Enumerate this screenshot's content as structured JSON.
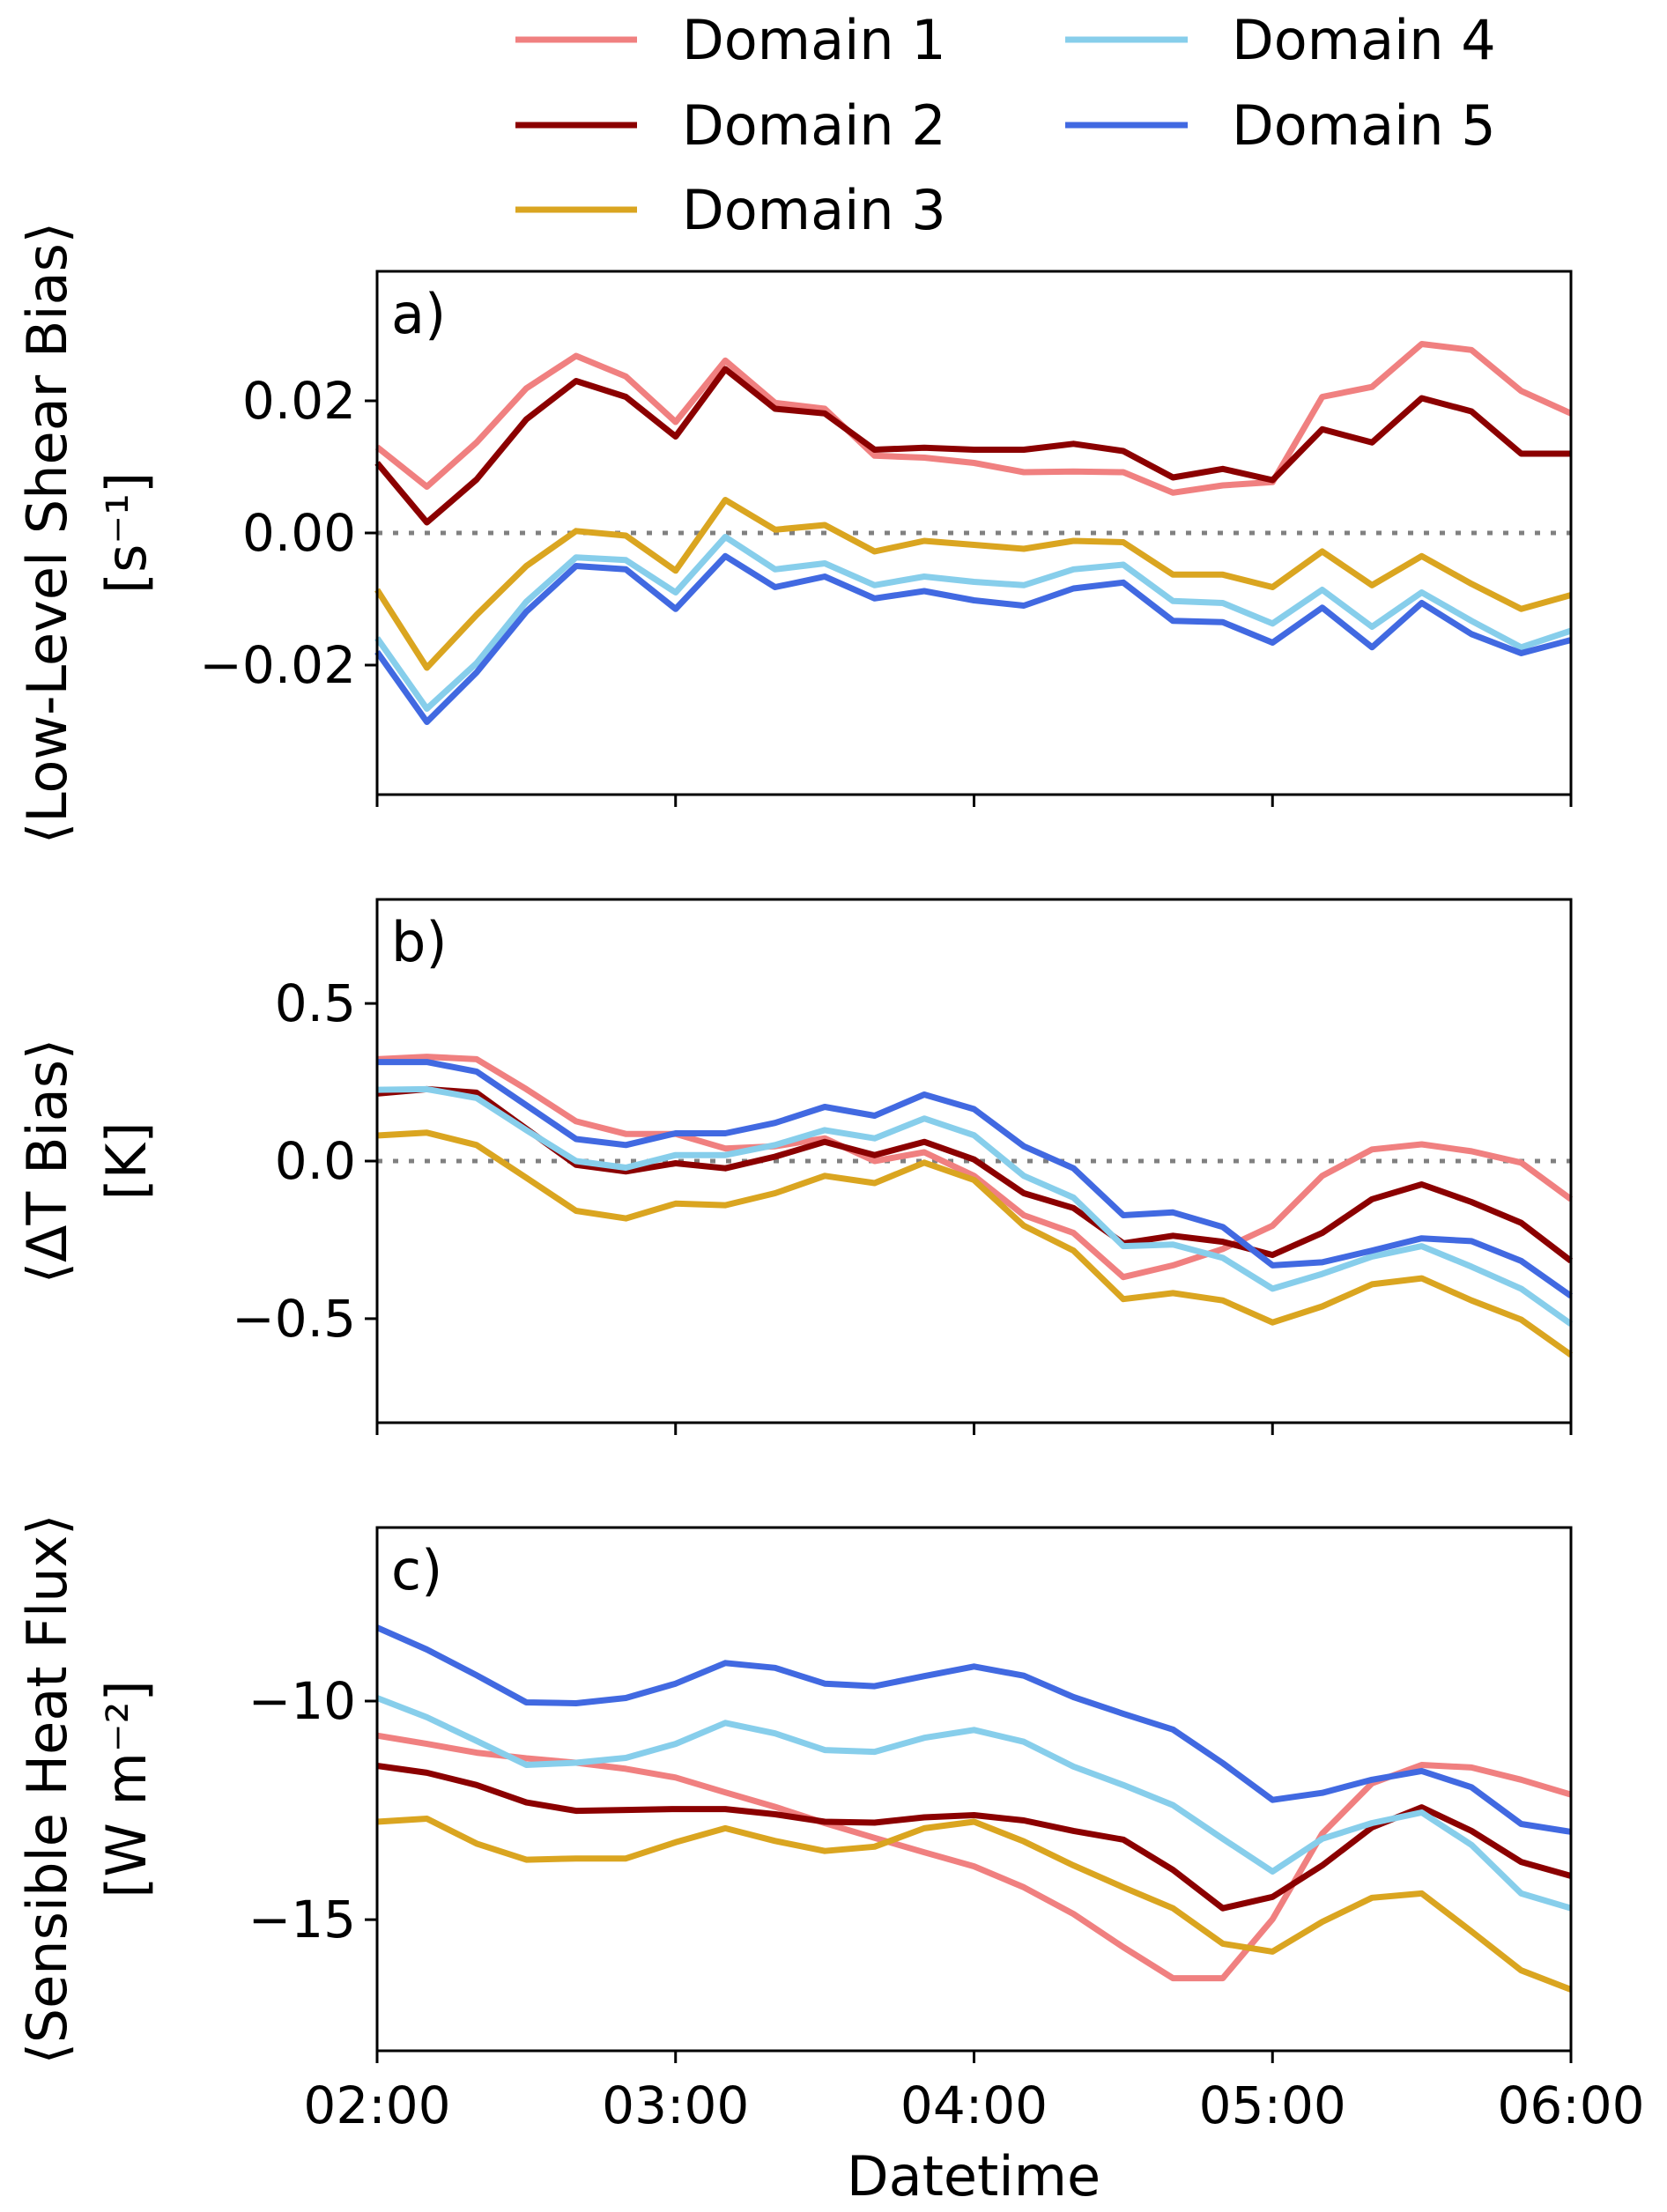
{
  "figure": {
    "xlabel": "Datetime"
  },
  "legend": {
    "placement": "top-center",
    "columns": 2,
    "entries": [
      {
        "label": "Domain 1",
        "color": "#F08080"
      },
      {
        "label": "Domain 2",
        "color": "#8B0000"
      },
      {
        "label": "Domain 3",
        "color": "#DAA520"
      },
      {
        "label": "Domain 4",
        "color": "#87CEEB"
      },
      {
        "label": "Domain 5",
        "color": "#4169E1"
      }
    ]
  },
  "chart_data": [
    {
      "type": "line",
      "panel_label": "a)",
      "title": "",
      "ylabel_line1": "⟨Low-Level Shear Bias⟩",
      "ylabel_line2": "[s⁻¹]",
      "xlabel": "",
      "x": [
        "02:00",
        "02:10",
        "02:20",
        "02:30",
        "02:40",
        "02:50",
        "03:00",
        "03:10",
        "03:20",
        "03:30",
        "03:40",
        "03:50",
        "04:00",
        "04:10",
        "04:20",
        "04:30",
        "04:40",
        "04:50",
        "05:00",
        "05:10",
        "05:20",
        "05:30",
        "05:40",
        "05:50",
        "06:00"
      ],
      "xticks": [
        "02:00",
        "03:00",
        "04:00",
        "05:00",
        "06:00"
      ],
      "show_xtick_labels": false,
      "ylim": [
        -0.0396,
        0.0396
      ],
      "yticks": [
        0.02,
        0.0,
        -0.02
      ],
      "ytick_labels": [
        "0.02",
        "0.00",
        "−0.02"
      ],
      "reference_line": 0,
      "grid": false,
      "series": [
        {
          "name": "Domain 1",
          "values": [
            0.013,
            0.007,
            0.0137,
            0.0219,
            0.0268,
            0.0237,
            0.0168,
            0.0261,
            0.0197,
            0.0188,
            0.0117,
            0.0114,
            0.0106,
            0.0092,
            0.0093,
            0.0092,
            0.0061,
            0.0072,
            0.0077,
            0.0206,
            0.0221,
            0.0286,
            0.0277,
            0.0215,
            0.0181
          ]
        },
        {
          "name": "Domain 2",
          "values": [
            0.0106,
            0.0016,
            0.0081,
            0.0172,
            0.023,
            0.0206,
            0.0146,
            0.0248,
            0.0188,
            0.0181,
            0.0126,
            0.0129,
            0.0126,
            0.0126,
            0.0135,
            0.0124,
            0.0084,
            0.0097,
            0.008,
            0.0157,
            0.0137,
            0.0204,
            0.0184,
            0.012,
            0.012
          ]
        },
        {
          "name": "Domain 3",
          "values": [
            -0.0086,
            -0.0204,
            -0.0124,
            -0.005,
            0.0003,
            -0.0004,
            -0.0057,
            0.005,
            0.0005,
            0.0012,
            -0.0028,
            -0.0012,
            -0.0018,
            -0.0024,
            -0.0012,
            -0.0014,
            -0.0063,
            -0.0063,
            -0.0082,
            -0.0028,
            -0.0079,
            -0.0035,
            -0.0077,
            -0.0115,
            -0.0094
          ]
        },
        {
          "name": "Domain 4",
          "values": [
            -0.0159,
            -0.0266,
            -0.0197,
            -0.0104,
            -0.0037,
            -0.0041,
            -0.009,
            -0.0006,
            -0.0055,
            -0.0046,
            -0.0079,
            -0.0066,
            -0.0074,
            -0.0079,
            -0.0055,
            -0.0048,
            -0.0103,
            -0.0106,
            -0.0137,
            -0.0086,
            -0.0142,
            -0.009,
            -0.0133,
            -0.0173,
            -0.0148
          ]
        },
        {
          "name": "Domain 5",
          "values": [
            -0.018,
            -0.0286,
            -0.0211,
            -0.0119,
            -0.005,
            -0.0055,
            -0.0115,
            -0.0035,
            -0.0082,
            -0.0066,
            -0.0099,
            -0.0088,
            -0.0102,
            -0.011,
            -0.0084,
            -0.0075,
            -0.0133,
            -0.0135,
            -0.0166,
            -0.0113,
            -0.0173,
            -0.0106,
            -0.0153,
            -0.0182,
            -0.0162
          ]
        }
      ]
    },
    {
      "type": "line",
      "panel_label": "b)",
      "title": "",
      "ylabel_line1": "⟨ΔT Bias⟩",
      "ylabel_line2": "[K]",
      "xlabel": "",
      "x": [
        "02:00",
        "02:10",
        "02:20",
        "02:30",
        "02:40",
        "02:50",
        "03:00",
        "03:10",
        "03:20",
        "03:30",
        "03:40",
        "03:50",
        "04:00",
        "04:10",
        "04:20",
        "04:30",
        "04:40",
        "04:50",
        "05:00",
        "05:10",
        "05:20",
        "05:30",
        "05:40",
        "05:50",
        "06:00"
      ],
      "xticks": [
        "02:00",
        "03:00",
        "04:00",
        "05:00",
        "06:00"
      ],
      "show_xtick_labels": false,
      "ylim": [
        -0.83,
        0.83
      ],
      "yticks": [
        0.5,
        0.0,
        -0.5
      ],
      "ytick_labels": [
        "0.5",
        "0.0",
        "−0.5"
      ],
      "reference_line": 0,
      "grid": false,
      "series": [
        {
          "name": "Domain 1",
          "values": [
            0.323,
            0.331,
            0.323,
            0.228,
            0.126,
            0.086,
            0.086,
            0.04,
            0.047,
            0.072,
            0.0,
            0.028,
            -0.047,
            -0.172,
            -0.228,
            -0.368,
            -0.331,
            -0.279,
            -0.205,
            -0.047,
            0.037,
            0.053,
            0.031,
            -0.005,
            -0.121
          ]
        },
        {
          "name": "Domain 2",
          "values": [
            0.214,
            0.228,
            0.217,
            0.102,
            -0.012,
            -0.033,
            -0.007,
            -0.023,
            0.014,
            0.061,
            0.019,
            0.061,
            0.005,
            -0.102,
            -0.149,
            -0.261,
            -0.237,
            -0.256,
            -0.298,
            -0.228,
            -0.121,
            -0.074,
            -0.13,
            -0.196,
            -0.317
          ]
        },
        {
          "name": "Domain 3",
          "values": [
            0.081,
            0.09,
            0.051,
            -0.053,
            -0.158,
            -0.182,
            -0.135,
            -0.14,
            -0.102,
            -0.047,
            -0.07,
            -0.005,
            -0.06,
            -0.205,
            -0.284,
            -0.438,
            -0.419,
            -0.442,
            -0.512,
            -0.461,
            -0.391,
            -0.372,
            -0.442,
            -0.503,
            -0.615
          ]
        },
        {
          "name": "Domain 4",
          "values": [
            0.226,
            0.228,
            0.2,
            0.098,
            0.0,
            -0.021,
            0.019,
            0.019,
            0.051,
            0.098,
            0.072,
            0.135,
            0.082,
            -0.047,
            -0.116,
            -0.27,
            -0.265,
            -0.307,
            -0.405,
            -0.358,
            -0.303,
            -0.27,
            -0.335,
            -0.405,
            -0.517
          ]
        },
        {
          "name": "Domain 5",
          "values": [
            0.314,
            0.314,
            0.284,
            0.177,
            0.07,
            0.051,
            0.088,
            0.088,
            0.121,
            0.172,
            0.144,
            0.211,
            0.165,
            0.047,
            -0.023,
            -0.172,
            -0.163,
            -0.209,
            -0.331,
            -0.321,
            -0.284,
            -0.245,
            -0.254,
            -0.317,
            -0.428
          ]
        }
      ]
    },
    {
      "type": "line",
      "panel_label": "c)",
      "title": "",
      "ylabel_line1": "⟨Sensible Heat Flux⟩",
      "ylabel_line2": "[W m⁻²]",
      "xlabel": "Datetime",
      "x": [
        "02:00",
        "02:10",
        "02:20",
        "02:30",
        "02:40",
        "02:50",
        "03:00",
        "03:10",
        "03:20",
        "03:30",
        "03:40",
        "03:50",
        "04:00",
        "04:10",
        "04:20",
        "04:30",
        "04:40",
        "04:50",
        "05:00",
        "05:10",
        "05:20",
        "05:30",
        "05:40",
        "05:50",
        "06:00"
      ],
      "xticks": [
        "02:00",
        "03:00",
        "04:00",
        "05:00",
        "06:00"
      ],
      "show_xtick_labels": true,
      "ylim": [
        -18.0,
        -6.03
      ],
      "yticks": [
        -10,
        -15
      ],
      "ytick_labels": [
        "−10",
        "−15"
      ],
      "reference_line": null,
      "grid": false,
      "series": [
        {
          "name": "Domain 1",
          "values": [
            -10.79,
            -10.98,
            -11.18,
            -11.31,
            -11.41,
            -11.55,
            -11.75,
            -12.09,
            -12.42,
            -12.79,
            -13.13,
            -13.46,
            -13.78,
            -14.26,
            -14.87,
            -15.63,
            -16.34,
            -16.34,
            -14.99,
            -13.03,
            -11.88,
            -11.46,
            -11.52,
            -11.8,
            -12.14
          ]
        },
        {
          "name": "Domain 2",
          "values": [
            -11.48,
            -11.64,
            -11.92,
            -12.32,
            -12.51,
            -12.49,
            -12.47,
            -12.47,
            -12.59,
            -12.76,
            -12.78,
            -12.66,
            -12.61,
            -12.73,
            -12.97,
            -13.17,
            -13.86,
            -14.74,
            -14.48,
            -13.76,
            -12.89,
            -12.43,
            -12.97,
            -13.68,
            -14.0
          ]
        },
        {
          "name": "Domain 3",
          "values": [
            -12.76,
            -12.69,
            -13.26,
            -13.63,
            -13.6,
            -13.6,
            -13.23,
            -12.91,
            -13.2,
            -13.43,
            -13.33,
            -12.91,
            -12.76,
            -13.21,
            -13.76,
            -14.26,
            -14.74,
            -15.55,
            -15.73,
            -15.05,
            -14.5,
            -14.4,
            -15.27,
            -16.16,
            -16.6
          ]
        },
        {
          "name": "Domain 4",
          "values": [
            -9.93,
            -10.37,
            -10.91,
            -11.46,
            -11.41,
            -11.3,
            -10.98,
            -10.5,
            -10.74,
            -11.12,
            -11.16,
            -10.84,
            -10.66,
            -10.93,
            -11.5,
            -11.92,
            -12.38,
            -13.15,
            -13.9,
            -13.15,
            -12.79,
            -12.55,
            -13.29,
            -14.4,
            -14.74
          ]
        },
        {
          "name": "Domain 5",
          "values": [
            -8.32,
            -8.82,
            -9.41,
            -10.03,
            -10.05,
            -9.93,
            -9.6,
            -9.13,
            -9.24,
            -9.6,
            -9.66,
            -9.43,
            -9.21,
            -9.42,
            -9.91,
            -10.29,
            -10.65,
            -11.42,
            -12.26,
            -12.1,
            -11.8,
            -11.6,
            -11.97,
            -12.81,
            -12.99
          ]
        }
      ]
    }
  ]
}
